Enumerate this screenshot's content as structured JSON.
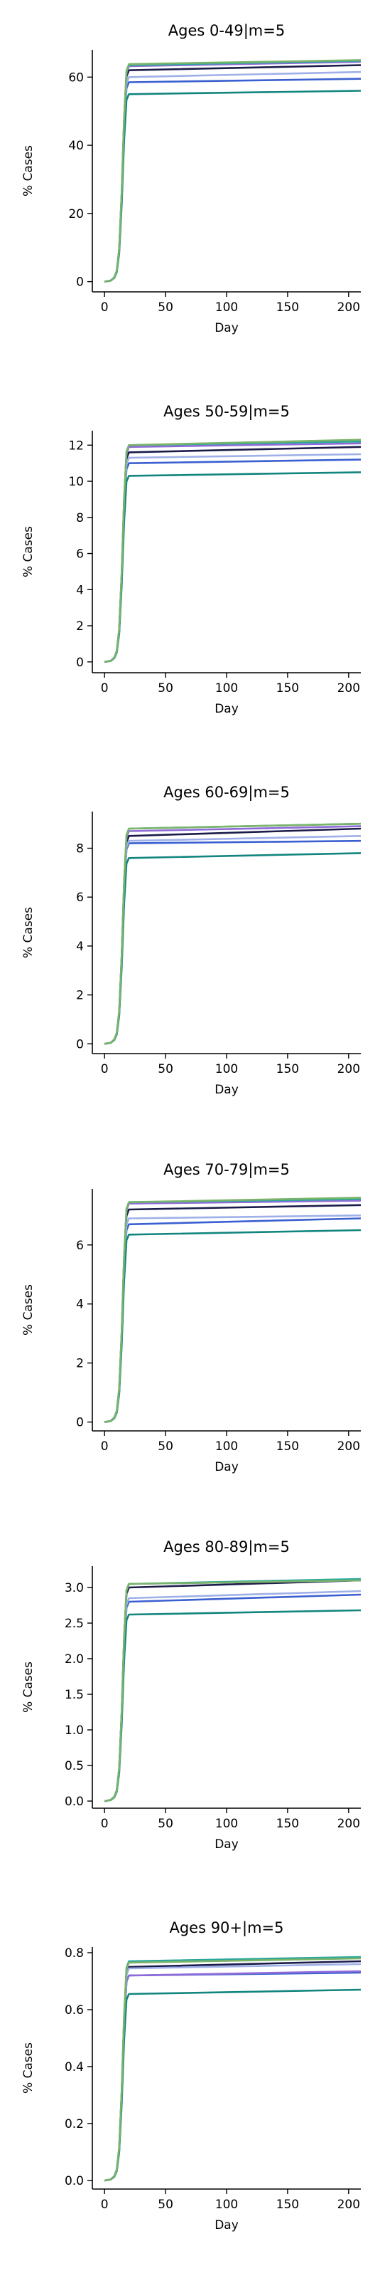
{
  "series_colors": [
    "#1b1b4a",
    "#3a5fd0",
    "#8f6bd9",
    "#9fb0e8",
    "#12857e",
    "#2aa89a",
    "#7bb36a",
    "#c8c27a"
  ],
  "chart_data": [
    {
      "type": "line",
      "title": "Ages 0-49|m=5",
      "xlabel": "Day",
      "ylabel": "% Cases",
      "xlim": [
        -10,
        210
      ],
      "ylim": [
        -3,
        68
      ],
      "xticks": [
        0,
        50,
        100,
        150,
        200
      ],
      "yticks": [
        0,
        20,
        40,
        60
      ],
      "x": [
        0,
        5,
        8,
        10,
        12,
        14,
        16,
        18,
        20,
        210
      ],
      "rise_shape": [
        0,
        0.005,
        0.02,
        0.05,
        0.15,
        0.4,
        0.75,
        0.97,
        1,
        1
      ],
      "series": [
        {
          "start": 62.0,
          "end": 63.5
        },
        {
          "start": 58.5,
          "end": 59.5
        },
        {
          "start": 63.2,
          "end": 64.5
        },
        {
          "start": 60.0,
          "end": 61.5
        },
        {
          "start": 55.0,
          "end": 56.0
        },
        {
          "start": 63.5,
          "end": 64.8
        },
        {
          "start": 63.8,
          "end": 65.0
        }
      ]
    },
    {
      "type": "line",
      "title": "Ages 50-59|m=5",
      "xlabel": "Day",
      "ylabel": "% Cases",
      "xlim": [
        -10,
        210
      ],
      "ylim": [
        -0.6,
        12.8
      ],
      "xticks": [
        0,
        50,
        100,
        150,
        200
      ],
      "yticks": [
        0,
        2,
        4,
        6,
        8,
        10,
        12
      ],
      "x": [
        0,
        5,
        8,
        10,
        12,
        14,
        16,
        18,
        20,
        210
      ],
      "rise_shape": [
        0,
        0.005,
        0.02,
        0.05,
        0.15,
        0.4,
        0.75,
        0.97,
        1,
        1
      ],
      "series": [
        {
          "start": 11.6,
          "end": 11.9
        },
        {
          "start": 11.0,
          "end": 11.2
        },
        {
          "start": 11.9,
          "end": 12.1
        },
        {
          "start": 11.3,
          "end": 11.5
        },
        {
          "start": 10.3,
          "end": 10.5
        },
        {
          "start": 12.0,
          "end": 12.2
        },
        {
          "start": 12.0,
          "end": 12.3
        }
      ]
    },
    {
      "type": "line",
      "title": "Ages 60-69|m=5",
      "xlabel": "Day",
      "ylabel": "% Cases",
      "xlim": [
        -10,
        210
      ],
      "ylim": [
        -0.4,
        9.5
      ],
      "xticks": [
        0,
        50,
        100,
        150,
        200
      ],
      "yticks": [
        0,
        2,
        4,
        6,
        8
      ],
      "x": [
        0,
        5,
        8,
        10,
        12,
        14,
        16,
        18,
        20,
        210
      ],
      "rise_shape": [
        0,
        0.005,
        0.02,
        0.05,
        0.15,
        0.4,
        0.75,
        0.97,
        1,
        1
      ],
      "series": [
        {
          "start": 8.5,
          "end": 8.8
        },
        {
          "start": 8.2,
          "end": 8.3
        },
        {
          "start": 8.7,
          "end": 8.9
        },
        {
          "start": 8.3,
          "end": 8.5
        },
        {
          "start": 7.6,
          "end": 7.8
        },
        {
          "start": 8.8,
          "end": 9.0
        },
        {
          "start": 8.8,
          "end": 9.0
        }
      ]
    },
    {
      "type": "line",
      "title": "Ages 70-79|m=5",
      "xlabel": "Day",
      "ylabel": "% Cases",
      "xlim": [
        -10,
        210
      ],
      "ylim": [
        -0.3,
        7.9
      ],
      "xticks": [
        0,
        50,
        100,
        150,
        200
      ],
      "yticks": [
        0,
        2,
        4,
        6
      ],
      "x": [
        0,
        5,
        8,
        10,
        12,
        14,
        16,
        18,
        20,
        210
      ],
      "rise_shape": [
        0,
        0.005,
        0.02,
        0.05,
        0.15,
        0.4,
        0.75,
        0.97,
        1,
        1
      ],
      "series": [
        {
          "start": 7.2,
          "end": 7.35
        },
        {
          "start": 6.7,
          "end": 6.9
        },
        {
          "start": 7.4,
          "end": 7.5
        },
        {
          "start": 6.9,
          "end": 7.0
        },
        {
          "start": 6.35,
          "end": 6.5
        },
        {
          "start": 7.45,
          "end": 7.55
        },
        {
          "start": 7.45,
          "end": 7.6
        }
      ]
    },
    {
      "type": "line",
      "title": "Ages 80-89|m=5",
      "xlabel": "Day",
      "ylabel": "% Cases",
      "xlim": [
        -10,
        210
      ],
      "ylim": [
        -0.1,
        3.3
      ],
      "xticks": [
        0,
        50,
        100,
        150,
        200
      ],
      "yticks": [
        0.0,
        0.5,
        1.0,
        1.5,
        2.0,
        2.5,
        3.0
      ],
      "x": [
        0,
        5,
        8,
        10,
        12,
        14,
        16,
        18,
        20,
        210
      ],
      "rise_shape": [
        0,
        0.005,
        0.02,
        0.05,
        0.15,
        0.4,
        0.75,
        0.97,
        1,
        1
      ],
      "series": [
        {
          "start": 3.0,
          "end": 3.1
        },
        {
          "start": 2.8,
          "end": 2.9
        },
        {
          "start": 3.05,
          "end": 3.1
        },
        {
          "start": 2.85,
          "end": 2.95
        },
        {
          "start": 2.62,
          "end": 2.68
        },
        {
          "start": 3.05,
          "end": 3.12
        },
        {
          "start": 3.05,
          "end": 3.1
        }
      ]
    },
    {
      "type": "line",
      "title": "Ages 90+|m=5",
      "xlabel": "Day",
      "ylabel": "% Cases",
      "xlim": [
        -10,
        210
      ],
      "ylim": [
        -0.03,
        0.82
      ],
      "xticks": [
        0,
        50,
        100,
        150,
        200
      ],
      "yticks": [
        0.0,
        0.2,
        0.4,
        0.6,
        0.8
      ],
      "x": [
        0,
        5,
        8,
        10,
        12,
        14,
        16,
        18,
        20,
        210
      ],
      "rise_shape": [
        0,
        0.005,
        0.02,
        0.05,
        0.15,
        0.4,
        0.75,
        0.97,
        1,
        1
      ],
      "series": [
        {
          "start": 0.75,
          "end": 0.77
        },
        {
          "start": 0.72,
          "end": 0.73
        },
        {
          "start": 0.72,
          "end": 0.735
        },
        {
          "start": 0.745,
          "end": 0.76
        },
        {
          "start": 0.655,
          "end": 0.67
        },
        {
          "start": 0.77,
          "end": 0.785
        },
        {
          "start": 0.765,
          "end": 0.78
        }
      ]
    }
  ]
}
